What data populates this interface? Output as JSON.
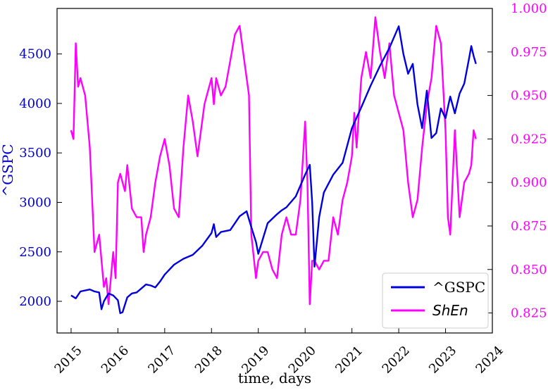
{
  "chart_data": {
    "type": "line",
    "xlabel": "time, days",
    "x_ticks": [
      "2015",
      "2016",
      "2017",
      "2018",
      "2019",
      "2020",
      "2021",
      "2022",
      "2023",
      "2024"
    ],
    "xlim": [
      2014.7,
      2024.0
    ],
    "grid": false,
    "legend_position": "bottom-right",
    "left_axis": {
      "label": "^GSPC",
      "color": "#0000dd",
      "ylim": [
        1680,
        4960
      ],
      "ticks": [
        2000,
        2500,
        3000,
        3500,
        4000,
        4500
      ]
    },
    "right_axis": {
      "color": "#ff00ff",
      "ylim": [
        0.8135,
        1.0
      ],
      "ticks": [
        0.825,
        0.85,
        0.875,
        0.9,
        0.925,
        0.95,
        0.975,
        1.0
      ],
      "tick_labels": [
        "0.825",
        "0.850",
        "0.875",
        "0.900",
        "0.925",
        "0.950",
        "0.975",
        "1.000"
      ]
    },
    "series": [
      {
        "name": "^GSPC",
        "axis": "left",
        "color": "#0000dd",
        "x": [
          2015.0,
          2015.1,
          2015.2,
          2015.3,
          2015.4,
          2015.5,
          2015.6,
          2015.65,
          2015.7,
          2015.8,
          2015.9,
          2016.0,
          2016.05,
          2016.1,
          2016.2,
          2016.3,
          2016.4,
          2016.5,
          2016.6,
          2016.7,
          2016.8,
          2016.9,
          2017.0,
          2017.2,
          2017.4,
          2017.6,
          2017.8,
          2018.0,
          2018.05,
          2018.1,
          2018.2,
          2018.4,
          2018.6,
          2018.75,
          2018.85,
          2018.95,
          2019.0,
          2019.2,
          2019.4,
          2019.5,
          2019.6,
          2019.8,
          2020.0,
          2020.1,
          2020.15,
          2020.2,
          2020.3,
          2020.4,
          2020.6,
          2020.8,
          2021.0,
          2021.2,
          2021.4,
          2021.6,
          2021.8,
          2022.0,
          2022.1,
          2022.2,
          2022.3,
          2022.4,
          2022.5,
          2022.6,
          2022.7,
          2022.8,
          2022.9,
          2023.0,
          2023.1,
          2023.2,
          2023.3,
          2023.4,
          2023.5,
          2023.55,
          2023.6,
          2023.65
        ],
        "values": [
          2060,
          2030,
          2100,
          2110,
          2120,
          2100,
          2090,
          1920,
          2000,
          2080,
          2060,
          2010,
          1880,
          1890,
          2040,
          2080,
          2090,
          2130,
          2170,
          2160,
          2140,
          2200,
          2270,
          2370,
          2430,
          2470,
          2560,
          2690,
          2780,
          2650,
          2700,
          2720,
          2860,
          2910,
          2750,
          2600,
          2480,
          2790,
          2880,
          2920,
          2950,
          3060,
          3280,
          3380,
          3000,
          2350,
          2850,
          3100,
          3280,
          3400,
          3750,
          3960,
          4180,
          4380,
          4560,
          4780,
          4500,
          4300,
          4400,
          3990,
          3750,
          4130,
          3650,
          3700,
          3950,
          3850,
          4070,
          3900,
          4100,
          4200,
          4450,
          4580,
          4480,
          4400
        ]
      },
      {
        "name": "ShEn",
        "axis": "right",
        "color": "#ff00ff",
        "x": [
          2015.0,
          2015.05,
          2015.1,
          2015.15,
          2015.2,
          2015.3,
          2015.4,
          2015.5,
          2015.6,
          2015.7,
          2015.75,
          2015.8,
          2015.9,
          2015.95,
          2016.0,
          2016.05,
          2016.1,
          2016.15,
          2016.2,
          2016.3,
          2016.4,
          2016.5,
          2016.55,
          2016.6,
          2016.7,
          2016.8,
          2016.9,
          2017.0,
          2017.1,
          2017.2,
          2017.3,
          2017.4,
          2017.5,
          2017.6,
          2017.7,
          2017.8,
          2017.85,
          2017.9,
          2018.0,
          2018.05,
          2018.1,
          2018.2,
          2018.3,
          2018.4,
          2018.5,
          2018.6,
          2018.7,
          2018.8,
          2018.85,
          2018.95,
          2019.0,
          2019.1,
          2019.2,
          2019.3,
          2019.4,
          2019.5,
          2019.6,
          2019.7,
          2019.8,
          2019.9,
          2020.0,
          2020.05,
          2020.1,
          2020.15,
          2020.2,
          2020.3,
          2020.4,
          2020.5,
          2020.6,
          2020.7,
          2020.8,
          2020.9,
          2021.0,
          2021.05,
          2021.1,
          2021.2,
          2021.3,
          2021.4,
          2021.5,
          2021.6,
          2021.7,
          2021.8,
          2021.9,
          2022.0,
          2022.1,
          2022.2,
          2022.3,
          2022.4,
          2022.5,
          2022.6,
          2022.7,
          2022.8,
          2022.9,
          2023.0,
          2023.05,
          2023.1,
          2023.2,
          2023.3,
          2023.4,
          2023.5,
          2023.55,
          2023.6,
          2023.65
        ],
        "values": [
          0.93,
          0.925,
          0.98,
          0.955,
          0.96,
          0.95,
          0.92,
          0.86,
          0.87,
          0.84,
          0.845,
          0.83,
          0.86,
          0.845,
          0.9,
          0.905,
          0.9,
          0.895,
          0.91,
          0.885,
          0.88,
          0.88,
          0.86,
          0.87,
          0.88,
          0.9,
          0.915,
          0.925,
          0.91,
          0.885,
          0.88,
          0.92,
          0.95,
          0.935,
          0.915,
          0.935,
          0.945,
          0.95,
          0.96,
          0.945,
          0.96,
          0.95,
          0.955,
          0.97,
          0.985,
          0.99,
          0.97,
          0.95,
          0.87,
          0.845,
          0.855,
          0.86,
          0.86,
          0.85,
          0.845,
          0.87,
          0.88,
          0.87,
          0.87,
          0.89,
          0.935,
          0.9,
          0.83,
          0.855,
          0.855,
          0.85,
          0.855,
          0.855,
          0.88,
          0.87,
          0.89,
          0.9,
          0.915,
          0.94,
          0.92,
          0.96,
          0.975,
          0.96,
          0.995,
          0.975,
          0.96,
          0.98,
          0.95,
          0.94,
          0.93,
          0.9,
          0.88,
          0.89,
          0.92,
          0.945,
          0.96,
          0.99,
          0.98,
          0.93,
          0.88,
          0.87,
          0.93,
          0.88,
          0.9,
          0.905,
          0.91,
          0.93,
          0.925
        ]
      }
    ]
  }
}
